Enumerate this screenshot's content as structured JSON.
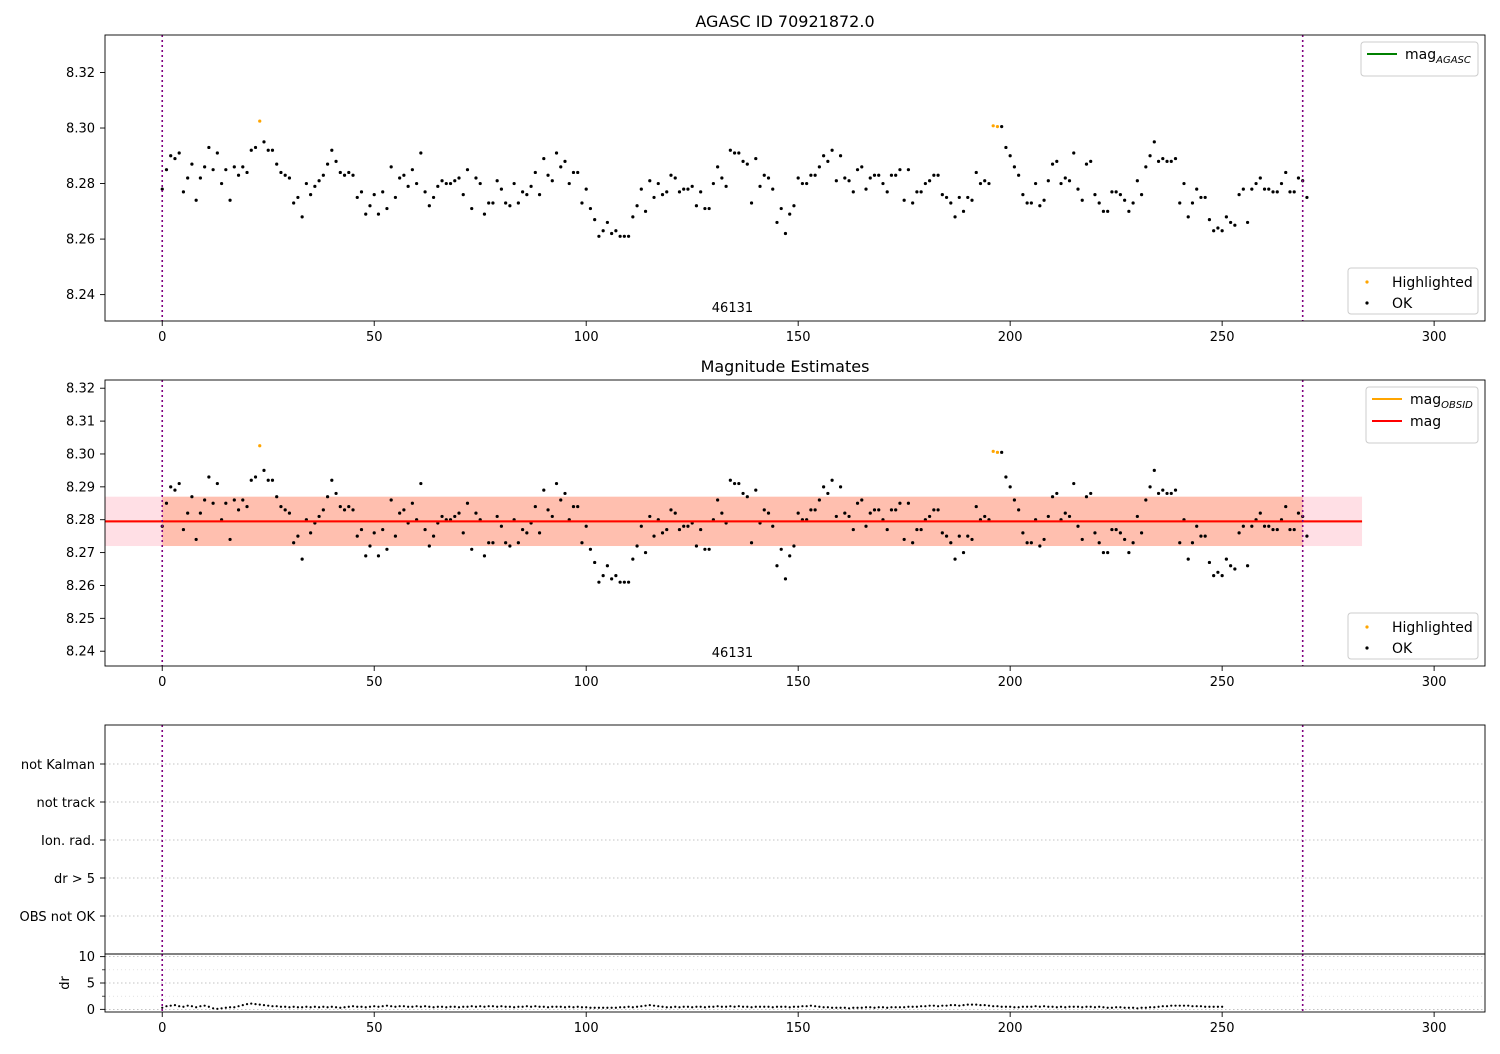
{
  "chart_data": [
    {
      "type": "scatter",
      "title": "AGASC ID 70921872.0",
      "xlim": [
        -13.5,
        312
      ],
      "ylim": [
        8.2305,
        8.3335
      ],
      "xticks": [
        0,
        50,
        100,
        150,
        200,
        250,
        300
      ],
      "yticks": [
        8.24,
        8.26,
        8.28,
        8.3,
        8.32
      ],
      "yfmt": 2,
      "vlines": [
        0,
        269
      ],
      "obs_label": {
        "text": "46131",
        "x": 134.5
      },
      "lines": [
        {
          "name": "mag",
          "sub": "AGASC",
          "color": "#008000",
          "y": null
        }
      ],
      "legend_top": "top-right",
      "legend_bottom": "bottom-right",
      "highlighted": {
        "label": "Highlighted",
        "color": "#ffa500",
        "points": [
          [
            23,
            8.3025
          ],
          [
            196,
            8.3008
          ],
          [
            197,
            8.3005
          ]
        ]
      },
      "ok": {
        "label": "OK",
        "color": "#000000"
      }
    },
    {
      "type": "scatter",
      "title": "Magnitude Estimates",
      "xlim": [
        -13.5,
        312
      ],
      "ylim": [
        8.2355,
        8.3225
      ],
      "xticks": [
        0,
        50,
        100,
        150,
        200,
        250,
        300
      ],
      "yticks": [
        8.24,
        8.25,
        8.26,
        8.27,
        8.28,
        8.29,
        8.3,
        8.31,
        8.32
      ],
      "yfmt": 2,
      "vlines": [
        0,
        269
      ],
      "obs_label": {
        "text": "46131",
        "x": 134.5
      },
      "lines": [
        {
          "name": "mag",
          "sub": "OBSID",
          "color": "#ffa500",
          "y": 8.2795
        },
        {
          "name": "mag",
          "sub": "",
          "color": "#ff0000",
          "y": 8.2795
        }
      ],
      "bands": [
        {
          "y0": 8.272,
          "y1": 8.287,
          "x0": -13.5,
          "x1": 283,
          "color": "#ffc0cb"
        },
        {
          "y0": 8.272,
          "y1": 8.287,
          "x0": 0,
          "x1": 269,
          "color": "#ffa07a"
        }
      ],
      "legend_top": "top-right",
      "legend_bottom": "bottom-right",
      "highlighted": {
        "label": "Highlighted",
        "color": "#ffa500",
        "points": [
          [
            23,
            8.3025
          ],
          [
            196,
            8.3008
          ],
          [
            197,
            8.3005
          ]
        ]
      },
      "ok": {
        "label": "OK",
        "color": "#000000"
      }
    },
    {
      "type": "scatter",
      "title": "",
      "categories": [
        "OBS not OK",
        "dr > 5",
        "Ion. rad.",
        "not track",
        "not Kalman"
      ],
      "xlim": [
        -13.5,
        312
      ],
      "vlines": [
        0,
        269
      ],
      "grid": true,
      "points": []
    },
    {
      "type": "scatter",
      "title": "",
      "ylabel": "dr",
      "xlim": [
        -13.5,
        312
      ],
      "ylim": [
        -0.5,
        10.5
      ],
      "xticks": [
        0,
        50,
        100,
        150,
        200,
        250,
        300
      ],
      "yticks": [
        0,
        5,
        10
      ],
      "minor_yticks": [
        2.5,
        7.5
      ],
      "vlines": [
        0,
        269
      ],
      "grid": true,
      "dr": {
        "range": [
          0,
          269
        ],
        "values": [
          0.3,
          0.6,
          0.7,
          0.8,
          0.6,
          0.5,
          0.7,
          0.6,
          0.4,
          0.6,
          0.7,
          0.5,
          0.2,
          0.1,
          0.2,
          0.3,
          0.4,
          0.4,
          0.6,
          0.8,
          1.0,
          1.1,
          1.0,
          0.9,
          0.8,
          0.7,
          0.6,
          0.6,
          0.5,
          0.5,
          0.4,
          0.5,
          0.4,
          0.4,
          0.5,
          0.4,
          0.5,
          0.4,
          0.5,
          0.4,
          0.5,
          0.4,
          0.3,
          0.4,
          0.5,
          0.6,
          0.5,
          0.5,
          0.4,
          0.5,
          0.6,
          0.5,
          0.6,
          0.7,
          0.6,
          0.5,
          0.6,
          0.6,
          0.5,
          0.5,
          0.6,
          0.5,
          0.6,
          0.5,
          0.4,
          0.5,
          0.5,
          0.4,
          0.5,
          0.5,
          0.4,
          0.5,
          0.5,
          0.6,
          0.5,
          0.6,
          0.5,
          0.6,
          0.6,
          0.5,
          0.6,
          0.5,
          0.5,
          0.4,
          0.5,
          0.5,
          0.6,
          0.5,
          0.6,
          0.5,
          0.5,
          0.4,
          0.5,
          0.5,
          0.5,
          0.4,
          0.5,
          0.4,
          0.5,
          0.4,
          0.4,
          0.3,
          0.3,
          0.3,
          0.3,
          0.3,
          0.3,
          0.3,
          0.4,
          0.4,
          0.5,
          0.4,
          0.5,
          0.6,
          0.7,
          0.8,
          0.7,
          0.6,
          0.5,
          0.4,
          0.4,
          0.5,
          0.4,
          0.5,
          0.5,
          0.4,
          0.5,
          0.5,
          0.4,
          0.5,
          0.5,
          0.6,
          0.5,
          0.5,
          0.6,
          0.5,
          0.6,
          0.5,
          0.5,
          0.4,
          0.5,
          0.5,
          0.5,
          0.5,
          0.4,
          0.5,
          0.5,
          0.5,
          0.4,
          0.5,
          0.5,
          0.6,
          0.6,
          0.7,
          0.6,
          0.5,
          0.4,
          0.4,
          0.3,
          0.3,
          0.3,
          0.3,
          0.2,
          0.3,
          0.3,
          0.3,
          0.4,
          0.4,
          0.3,
          0.4,
          0.4,
          0.3,
          0.4,
          0.4,
          0.4,
          0.4,
          0.5,
          0.5,
          0.5,
          0.6,
          0.6,
          0.7,
          0.7,
          0.6,
          0.7,
          0.7,
          0.8,
          0.8,
          0.7,
          0.8,
          0.9,
          0.9,
          0.9,
          0.8,
          0.8,
          0.7,
          0.6,
          0.6,
          0.5,
          0.5,
          0.5,
          0.4,
          0.4,
          0.5,
          0.5,
          0.5,
          0.6,
          0.5,
          0.6,
          0.5,
          0.5,
          0.4,
          0.5,
          0.4,
          0.5,
          0.5,
          0.5,
          0.4,
          0.5,
          0.5,
          0.4,
          0.5,
          0.4,
          0.3,
          0.3,
          0.4,
          0.4,
          0.3,
          0.3,
          0.3,
          0.2,
          0.3,
          0.3,
          0.4,
          0.4,
          0.5,
          0.6,
          0.6,
          0.7,
          0.7,
          0.7,
          0.7,
          0.7,
          0.6,
          0.6,
          0.6,
          0.5,
          0.5,
          0.5,
          0.5,
          0.5
        ]
      }
    }
  ],
  "mag_series": {
    "range": [
      0,
      269
    ],
    "values": [
      8.278,
      8.285,
      8.29,
      8.289,
      8.291,
      8.277,
      8.282,
      8.287,
      8.274,
      8.282,
      8.286,
      8.293,
      8.285,
      8.291,
      8.28,
      8.285,
      8.274,
      8.286,
      8.283,
      8.286,
      8.284,
      8.292,
      8.293,
      8.3025,
      8.295,
      8.292,
      8.292,
      8.287,
      8.284,
      8.283,
      8.282,
      8.273,
      8.275,
      8.268,
      8.28,
      8.276,
      8.279,
      8.281,
      8.283,
      8.287,
      8.292,
      8.288,
      8.284,
      8.283,
      8.284,
      8.283,
      8.275,
      8.277,
      8.269,
      8.272,
      8.276,
      8.269,
      8.277,
      8.271,
      8.286,
      8.275,
      8.282,
      8.283,
      8.279,
      8.285,
      8.28,
      8.291,
      8.277,
      8.272,
      8.275,
      8.279,
      8.281,
      8.28,
      8.28,
      8.281,
      8.282,
      8.276,
      8.285,
      8.271,
      8.282,
      8.28,
      8.269,
      8.273,
      8.273,
      8.281,
      8.278,
      8.273,
      8.272,
      8.28,
      8.273,
      8.277,
      8.276,
      8.279,
      8.284,
      8.276,
      8.289,
      8.283,
      8.281,
      8.291,
      8.286,
      8.288,
      8.28,
      8.284,
      8.284,
      8.273,
      8.278,
      8.271,
      8.267,
      8.261,
      8.263,
      8.266,
      8.262,
      8.263,
      8.261,
      8.261,
      8.261,
      8.268,
      8.272,
      8.278,
      8.27,
      8.281,
      8.275,
      8.28,
      8.276,
      8.277,
      8.283,
      8.282,
      8.277,
      8.278,
      8.278,
      8.279,
      8.272,
      8.277,
      8.271,
      8.271,
      8.28,
      8.286,
      8.282,
      8.279,
      8.292,
      8.291,
      8.291,
      8.288,
      8.287,
      8.273,
      8.289,
      8.279,
      8.283,
      8.282,
      8.278,
      8.266,
      8.271,
      8.262,
      8.269,
      8.272,
      8.282,
      8.28,
      8.28,
      8.283,
      8.283,
      8.286,
      8.29,
      8.288,
      8.292,
      8.281,
      8.29,
      8.282,
      8.281,
      8.277,
      8.285,
      8.286,
      8.278,
      8.282,
      8.283,
      8.283,
      8.28,
      8.277,
      8.283,
      8.283,
      8.285,
      8.274,
      8.285,
      8.273,
      8.277,
      8.277,
      8.28,
      8.281,
      8.283,
      8.283,
      8.276,
      8.275,
      8.273,
      8.268,
      8.275,
      8.27,
      8.275,
      8.274,
      8.284,
      8.28,
      8.281,
      8.28,
      8.286,
      8.3008,
      8.3005,
      8.293,
      8.29,
      8.286,
      8.283,
      8.276,
      8.273,
      8.273,
      8.28,
      8.272,
      8.274,
      8.281,
      8.287,
      8.288,
      8.28,
      8.282,
      8.281,
      8.291,
      8.278,
      8.274,
      8.287,
      8.288,
      8.276,
      8.273,
      8.27,
      8.27,
      8.277,
      8.277,
      8.276,
      8.274,
      8.27,
      8.273,
      8.281,
      8.276,
      8.286,
      8.29,
      8.295,
      8.288,
      8.289,
      8.288,
      8.288,
      8.289,
      8.273,
      8.28,
      8.268,
      8.273,
      8.278,
      8.275,
      8.275,
      8.267,
      8.263,
      8.264,
      8.263,
      8.268,
      8.266,
      8.265,
      8.276,
      8.278,
      8.266,
      8.278,
      8.28,
      8.282,
      8.278,
      8.278,
      8.277,
      8.277,
      8.28,
      8.284,
      8.277,
      8.277,
      8.282,
      8.281,
      8.275
    ]
  }
}
